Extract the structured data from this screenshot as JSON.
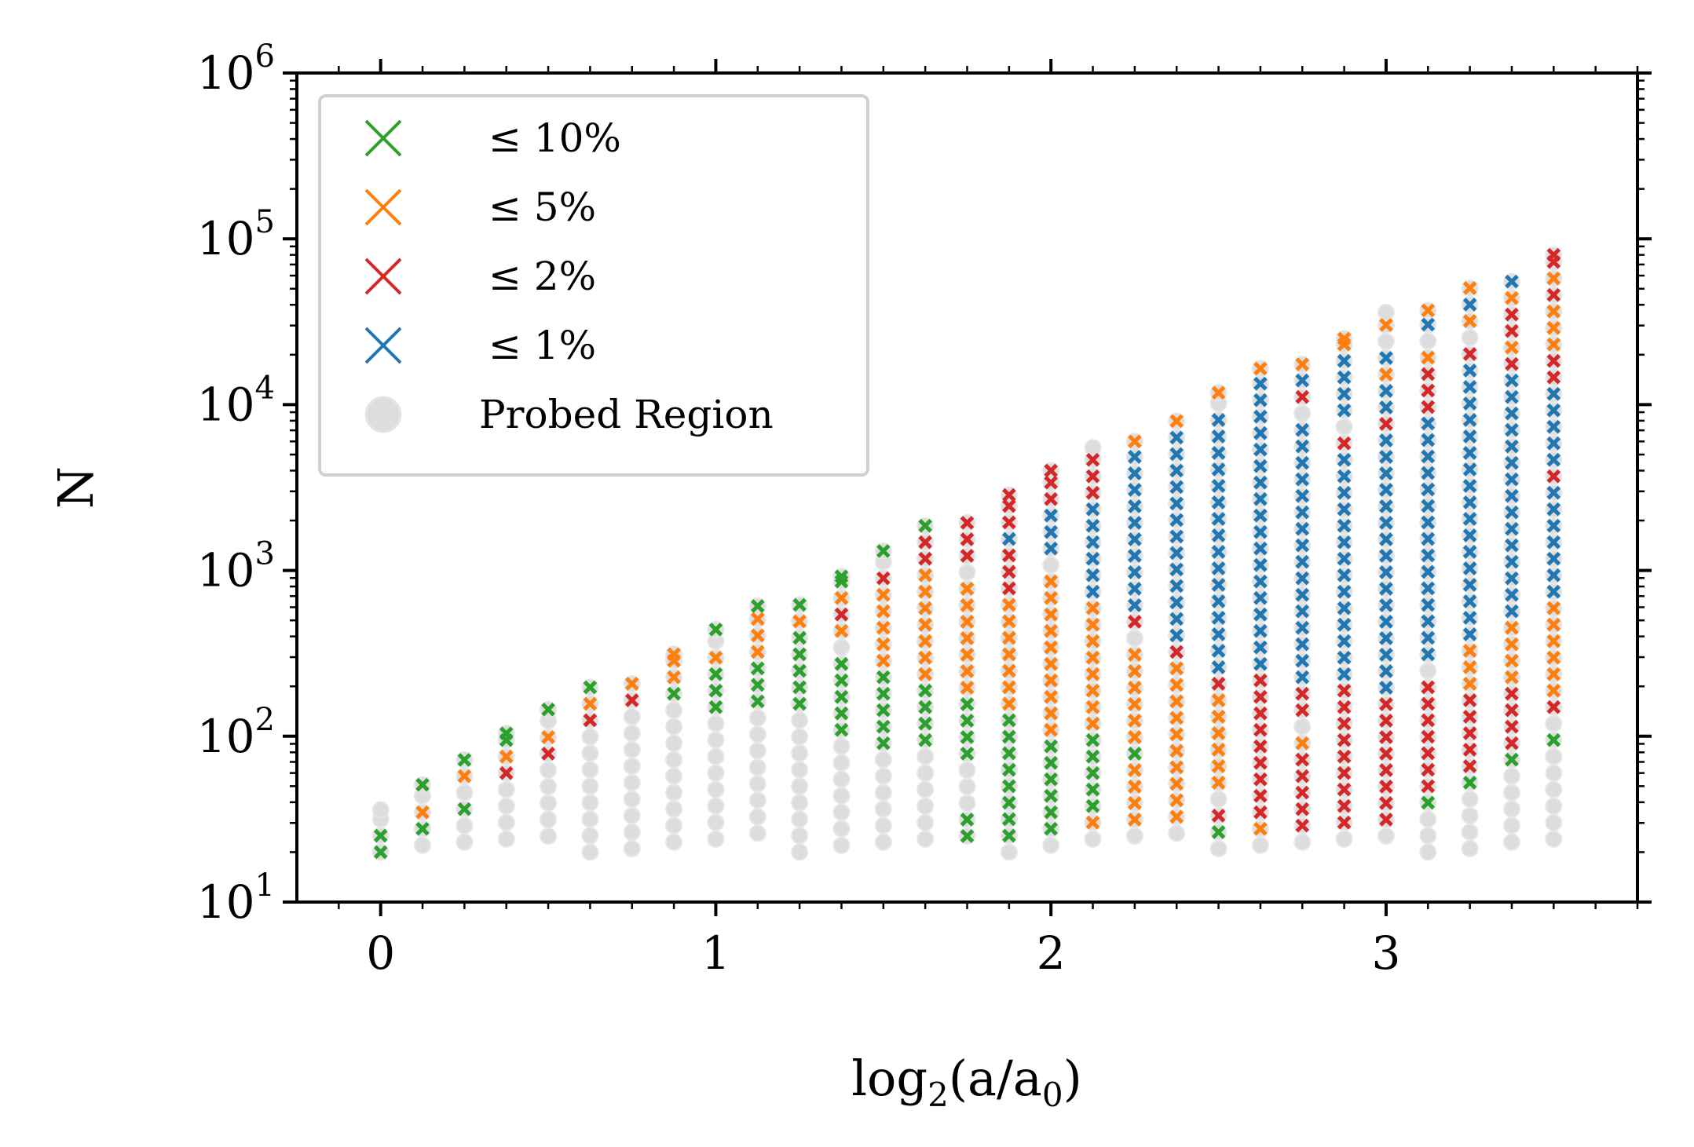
{
  "chart_data": {
    "type": "scatter",
    "title": "",
    "xlabel_base": "log",
    "xlabel_sub": "2",
    "xlabel_rest": "(a/a",
    "xlabel_sub2": "0",
    "xlabel_end": ")",
    "ylabel": "N",
    "xlim": [
      -0.25,
      3.75
    ],
    "ylim": [
      10,
      1000000
    ],
    "yscale": "log",
    "x_ticks": [
      {
        "value": 0,
        "label": "0"
      },
      {
        "value": 1,
        "label": "1"
      },
      {
        "value": 2,
        "label": "2"
      },
      {
        "value": 3,
        "label": "3"
      }
    ],
    "y_ticks": [
      {
        "value": 10,
        "base": "10",
        "exp": "1"
      },
      {
        "value": 100,
        "base": "10",
        "exp": "2"
      },
      {
        "value": 1000,
        "base": "10",
        "exp": "3"
      },
      {
        "value": 10000,
        "base": "10",
        "exp": "4"
      },
      {
        "value": 100000,
        "base": "10",
        "exp": "5"
      },
      {
        "value": 1000000,
        "base": "10",
        "exp": "6"
      }
    ],
    "legend": {
      "placement": "top-left",
      "entries": [
        {
          "label": "≤ 10%",
          "color": "#2ca02c",
          "marker": "x"
        },
        {
          "label": "≤ 5%",
          "color": "#ff7f0e",
          "marker": "x"
        },
        {
          "label": "≤ 2%",
          "color": "#d62728",
          "marker": "x"
        },
        {
          "label": "≤ 1%",
          "color": "#1f77b4",
          "marker": "x"
        },
        {
          "label": "Probed Region",
          "color": "#dddddd",
          "marker": "circle"
        }
      ]
    },
    "colors": {
      "green": "#2ca02c",
      "orange": "#ff7f0e",
      "red": "#d62728",
      "blue": "#1f77b4",
      "probed": "#dddddd"
    },
    "columns": [
      {
        "x": 0.0,
        "Nmin": 20,
        "Nmax": 36,
        "last": 27,
        "bands": [
          [
            20,
            27,
            "green"
          ]
        ]
      },
      {
        "x": 0.125,
        "Nmin": 22,
        "Nmax": 51,
        "last": 51,
        "bands": [
          [
            28,
            28,
            "green"
          ],
          [
            38,
            38,
            "orange"
          ],
          [
            51,
            51,
            "green"
          ]
        ]
      },
      {
        "x": 0.25,
        "Nmin": 23,
        "Nmax": 72,
        "last": 72,
        "bands": [
          [
            40,
            40,
            "green"
          ],
          [
            54,
            54,
            "orange"
          ],
          [
            72,
            72,
            "green"
          ]
        ]
      },
      {
        "x": 0.375,
        "Nmin": 24,
        "Nmax": 104,
        "last": 104,
        "bands": [
          [
            58,
            58,
            "red"
          ],
          [
            78,
            78,
            "orange"
          ],
          [
            104,
            104,
            "green"
          ]
        ]
      },
      {
        "x": 0.5,
        "Nmin": 25,
        "Nmax": 145,
        "last": 145,
        "bands": [
          [
            82,
            82,
            "red"
          ],
          [
            110,
            110,
            "orange"
          ],
          [
            145,
            145,
            "green"
          ]
        ]
      },
      {
        "x": 0.625,
        "Nmin": 20,
        "Nmax": 208,
        "last": 208,
        "bands": [
          [
            118,
            118,
            "red"
          ],
          [
            155,
            155,
            "orange"
          ],
          [
            208,
            208,
            "green"
          ]
        ]
      },
      {
        "x": 0.75,
        "Nmin": 21,
        "Nmax": 222,
        "last": 222,
        "bands": [
          [
            165,
            165,
            "red"
          ],
          [
            222,
            222,
            "orange"
          ]
        ]
      },
      {
        "x": 0.875,
        "Nmin": 23,
        "Nmax": 312,
        "last": 312,
        "bands": [
          [
            175,
            175,
            "green"
          ],
          [
            230,
            312,
            "orange"
          ]
        ]
      },
      {
        "x": 1.0,
        "Nmin": 24,
        "Nmax": 440,
        "last": 440,
        "bands": [
          [
            135,
            245,
            "green"
          ],
          [
            330,
            330,
            "orange"
          ],
          [
            440,
            440,
            "green"
          ]
        ]
      },
      {
        "x": 1.125,
        "Nmin": 26,
        "Nmax": 610,
        "last": 610,
        "bands": [
          [
            145,
            270,
            "green"
          ],
          [
            350,
            470,
            "orange"
          ],
          [
            610,
            610,
            "green"
          ]
        ]
      },
      {
        "x": 1.25,
        "Nmin": 20,
        "Nmax": 660,
        "last": 660,
        "bands": [
          [
            150,
            380,
            "green"
          ],
          [
            490,
            490,
            "orange"
          ],
          [
            660,
            660,
            "green"
          ]
        ]
      },
      {
        "x": 1.375,
        "Nmin": 22,
        "Nmax": 920,
        "last": 920,
        "bands": [
          [
            120,
            300,
            "green"
          ],
          [
            390,
            390,
            "orange"
          ],
          [
            520,
            520,
            "red"
          ],
          [
            700,
            700,
            "orange"
          ],
          [
            920,
            920,
            "green"
          ]
        ]
      },
      {
        "x": 1.5,
        "Nmin": 23,
        "Nmax": 1310,
        "last": 1310,
        "bands": [
          [
            95,
            240,
            "green"
          ],
          [
            320,
            800,
            "orange"
          ],
          [
            1000,
            1000,
            "red"
          ],
          [
            1310,
            1310,
            "green"
          ]
        ]
      },
      {
        "x": 1.625,
        "Nmin": 24,
        "Nmax": 1860,
        "last": 1860,
        "bands": [
          [
            100,
            180,
            "green"
          ],
          [
            240,
            850,
            "orange"
          ],
          [
            1100,
            1450,
            "red"
          ],
          [
            1860,
            1860,
            "green"
          ]
        ]
      },
      {
        "x": 1.75,
        "Nmin": 25,
        "Nmax": 2000,
        "last": 2000,
        "bands": [
          [
            25,
            32,
            "green"
          ],
          [
            82,
            145,
            "green"
          ],
          [
            200,
            850,
            "orange"
          ],
          [
            1100,
            2000,
            "red"
          ]
        ]
      },
      {
        "x": 1.875,
        "Nmin": 20,
        "Nmax": 2850,
        "last": 2850,
        "bands": [
          [
            26,
            118,
            "green"
          ],
          [
            150,
            640,
            "orange"
          ],
          [
            850,
            2850,
            "red"
          ],
          [
            1550,
            1550,
            "blue"
          ]
        ]
      },
      {
        "x": 2.0,
        "Nmin": 22,
        "Nmax": 4000,
        "last": 4000,
        "bands": [
          [
            28,
            95,
            "green"
          ],
          [
            120,
            950,
            "orange"
          ],
          [
            1250,
            4000,
            "red"
          ],
          [
            1300,
            2300,
            "blue"
          ]
        ]
      },
      {
        "x": 2.125,
        "Nmin": 24,
        "Nmax": 5500,
        "last": 4200,
        "bands": [
          [
            30,
            30,
            "orange"
          ],
          [
            40,
            100,
            "green"
          ],
          [
            130,
            600,
            "orange"
          ],
          [
            800,
            2300,
            "blue"
          ],
          [
            3200,
            4200,
            "red"
          ]
        ]
      },
      {
        "x": 2.25,
        "Nmin": 25,
        "Nmax": 6000,
        "last": 6000,
        "bands": [
          [
            32,
            58,
            "orange"
          ],
          [
            78,
            78,
            "green"
          ],
          [
            100,
            340,
            "orange"
          ],
          [
            450,
            450,
            "red"
          ],
          [
            600,
            4500,
            "blue"
          ],
          [
            6000,
            6000,
            "orange"
          ]
        ]
      },
      {
        "x": 2.375,
        "Nmin": 26,
        "Nmax": 8200,
        "last": 8200,
        "bands": [
          [
            34,
            250,
            "orange"
          ],
          [
            330,
            330,
            "red"
          ],
          [
            440,
            6800,
            "blue"
          ],
          [
            8200,
            8200,
            "orange"
          ]
        ]
      },
      {
        "x": 2.5,
        "Nmin": 21,
        "Nmax": 11800,
        "last": 11800,
        "bands": [
          [
            27,
            27,
            "green"
          ],
          [
            36,
            36,
            "red"
          ],
          [
            48,
            160,
            "orange"
          ],
          [
            210,
            210,
            "red"
          ],
          [
            280,
            9000,
            "blue"
          ],
          [
            11800,
            11800,
            "orange"
          ]
        ]
      },
      {
        "x": 2.625,
        "Nmin": 22,
        "Nmax": 16500,
        "last": 16500,
        "bands": [
          [
            29,
            29,
            "orange"
          ],
          [
            38,
            225,
            "red"
          ],
          [
            300,
            12500,
            "blue"
          ],
          [
            16500,
            16500,
            "orange"
          ]
        ]
      },
      {
        "x": 2.75,
        "Nmin": 23,
        "Nmax": 17500,
        "last": 17500,
        "bands": [
          [
            30,
            75,
            "red"
          ],
          [
            100,
            100,
            "orange"
          ],
          [
            135,
            180,
            "red"
          ],
          [
            240,
            7500,
            "blue"
          ],
          [
            10000,
            10000,
            "red"
          ],
          [
            13500,
            13500,
            "blue"
          ],
          [
            17500,
            17500,
            "orange"
          ]
        ]
      },
      {
        "x": 2.875,
        "Nmin": 24,
        "Nmax": 25000,
        "last": 25000,
        "bands": [
          [
            30,
            175,
            "red"
          ],
          [
            230,
            4800,
            "blue"
          ],
          [
            6300,
            6300,
            "red"
          ],
          [
            8300,
            19000,
            "blue"
          ],
          [
            25000,
            25000,
            "orange"
          ]
        ]
      },
      {
        "x": 3.0,
        "Nmin": 25,
        "Nmax": 36000,
        "last": 27000,
        "bands": [
          [
            34,
            155,
            "red"
          ],
          [
            200,
            6000,
            "blue"
          ],
          [
            8000,
            8000,
            "red"
          ],
          [
            10500,
            11500,
            "blue"
          ],
          [
            15500,
            15500,
            "orange"
          ],
          [
            20500,
            20500,
            "blue"
          ],
          [
            27000,
            27000,
            "orange"
          ]
        ]
      },
      {
        "x": 3.125,
        "Nmin": 20,
        "Nmax": 37000,
        "last": 37000,
        "bands": [
          [
            37,
            37,
            "green"
          ],
          [
            50,
            220,
            "red"
          ],
          [
            280,
            7000,
            "blue"
          ],
          [
            9000,
            16000,
            "red"
          ],
          [
            21000,
            21000,
            "orange"
          ],
          [
            28000,
            28000,
            "blue"
          ],
          [
            37000,
            37000,
            "orange"
          ]
        ]
      },
      {
        "x": 3.25,
        "Nmin": 21,
        "Nmax": 53000,
        "last": 53000,
        "bands": [
          [
            52,
            52,
            "green"
          ],
          [
            70,
            160,
            "red"
          ],
          [
            220,
            300,
            "orange"
          ],
          [
            400,
            17000,
            "blue"
          ],
          [
            22000,
            22000,
            "red"
          ],
          [
            29000,
            29000,
            "orange"
          ],
          [
            39000,
            39000,
            "blue"
          ],
          [
            53000,
            53000,
            "orange"
          ]
        ]
      },
      {
        "x": 3.375,
        "Nmin": 23,
        "Nmax": 56000,
        "last": 56000,
        "bands": [
          [
            75,
            75,
            "green"
          ],
          [
            100,
            180,
            "red"
          ],
          [
            240,
            420,
            "orange"
          ],
          [
            550,
            13000,
            "blue"
          ],
          [
            17500,
            32000,
            "red"
          ],
          [
            23000,
            23000,
            "orange"
          ],
          [
            42000,
            42000,
            "orange"
          ],
          [
            56000,
            56000,
            "blue"
          ]
        ]
      },
      {
        "x": 3.5,
        "Nmin": 24,
        "Nmax": 80000,
        "last": 80000,
        "bands": [
          [
            105,
            105,
            "green"
          ],
          [
            140,
            140,
            "red"
          ],
          [
            180,
            640,
            "orange"
          ],
          [
            780,
            10500,
            "blue"
          ],
          [
            3400,
            3400,
            "red"
          ],
          [
            14000,
            18500,
            "red"
          ],
          [
            25000,
            35000,
            "orange"
          ],
          [
            46000,
            46000,
            "red"
          ],
          [
            60000,
            60000,
            "orange"
          ],
          [
            80000,
            80000,
            "red"
          ]
        ]
      }
    ]
  }
}
